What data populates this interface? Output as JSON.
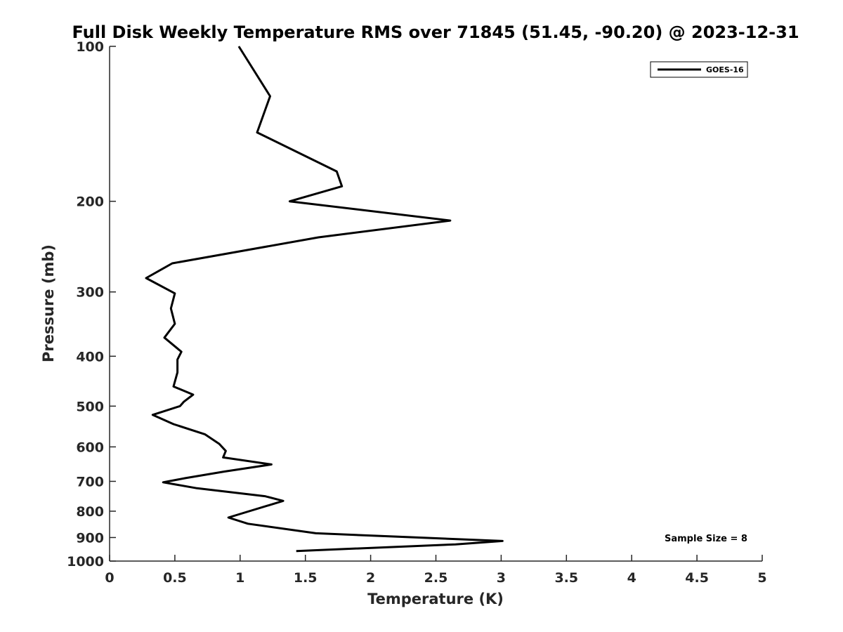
{
  "chart_data": {
    "type": "line",
    "title": "Full Disk Weekly Temperature RMS over 71845 (51.45, -90.20) @ 2023-12-31",
    "xlabel": "Temperature (K)",
    "ylabel": "Pressure (mb)",
    "xlim": [
      0,
      5
    ],
    "ylim": [
      100,
      1000
    ],
    "yscale": "log",
    "yreversed": true,
    "xticks": [
      0,
      0.5,
      1,
      1.5,
      2,
      2.5,
      3,
      3.5,
      4,
      4.5,
      5
    ],
    "xtick_labels": [
      "0",
      "0.5",
      "1",
      "1.5",
      "2",
      "2.5",
      "3",
      "3.5",
      "4",
      "4.5",
      "5"
    ],
    "yticks": [
      100,
      200,
      300,
      400,
      500,
      600,
      700,
      800,
      900,
      1000
    ],
    "ytick_labels": [
      "100",
      "200",
      "300",
      "400",
      "500",
      "600",
      "700",
      "800",
      "900",
      "1000"
    ],
    "grid": false,
    "legend_position": "top-right",
    "series": [
      {
        "name": "GOES-16",
        "color": "#000000",
        "points": [
          [
            0.99,
            100
          ],
          [
            1.23,
            125
          ],
          [
            1.13,
            147
          ],
          [
            1.74,
            175
          ],
          [
            1.78,
            187
          ],
          [
            1.38,
            200
          ],
          [
            2.61,
            218
          ],
          [
            1.6,
            235
          ],
          [
            0.48,
            264
          ],
          [
            0.28,
            282
          ],
          [
            0.5,
            302
          ],
          [
            0.47,
            323
          ],
          [
            0.5,
            346
          ],
          [
            0.42,
            368
          ],
          [
            0.55,
            392
          ],
          [
            0.52,
            406
          ],
          [
            0.52,
            430
          ],
          [
            0.49,
            458
          ],
          [
            0.64,
            475
          ],
          [
            0.57,
            490
          ],
          [
            0.54,
            500
          ],
          [
            0.33,
            520
          ],
          [
            0.49,
            542
          ],
          [
            0.73,
            567
          ],
          [
            0.84,
            592
          ],
          [
            0.89,
            611
          ],
          [
            0.87,
            629
          ],
          [
            1.24,
            649
          ],
          [
            0.88,
            670
          ],
          [
            0.58,
            690
          ],
          [
            0.41,
            703
          ],
          [
            0.67,
            722
          ],
          [
            1.19,
            748
          ],
          [
            1.33,
            764
          ],
          [
            0.91,
            823
          ],
          [
            1.06,
            846
          ],
          [
            1.58,
            883
          ],
          [
            3.01,
            914
          ],
          [
            2.65,
            928
          ],
          [
            1.43,
            956
          ]
        ]
      }
    ],
    "annotations": [
      "Sample Size = 8"
    ]
  }
}
